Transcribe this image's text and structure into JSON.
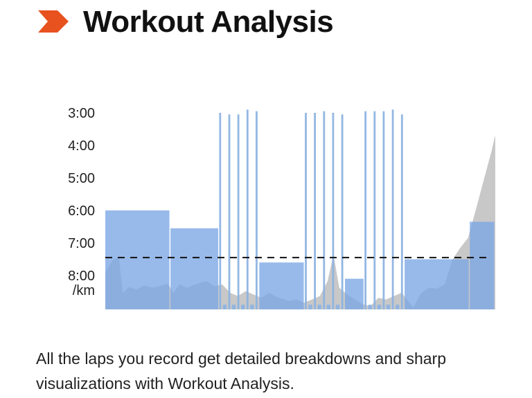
{
  "header": {
    "title": "Workout Analysis",
    "logo_icon": "orange-chevron-logo-icon",
    "accent_color": "#E8521F"
  },
  "caption": {
    "text": "All the laps you record get detailed breakdowns and sharp visualizations with Workout Analysis."
  },
  "chart_data": {
    "type": "bar",
    "yaxis": {
      "ticks": [
        "3:00",
        "4:00",
        "5:00",
        "6:00",
        "7:00",
        "8:00"
      ],
      "unit": "/km",
      "inverted": true,
      "range_min_per_km": [
        3,
        9
      ]
    },
    "reference_line": {
      "pace_min_per_km": 7.45,
      "style": "dashed"
    },
    "colors": {
      "lap": "#7BA6E6",
      "interval": "#8DB3E2",
      "elevation": "#C8C8C8"
    },
    "laps": [
      {
        "pace_min_per_km": 6.0,
        "distance_fraction": 0.143
      },
      {
        "pace_min_per_km": 6.55,
        "distance_fraction": 0.107
      },
      {
        "pace_min_per_km": 3.0,
        "distance_fraction": 0.008
      },
      {
        "pace_min_per_km": 8.9,
        "distance_fraction": 0.012
      },
      {
        "pace_min_per_km": 3.05,
        "distance_fraction": 0.008
      },
      {
        "pace_min_per_km": 8.9,
        "distance_fraction": 0.012
      },
      {
        "pace_min_per_km": 3.05,
        "distance_fraction": 0.008
      },
      {
        "pace_min_per_km": 8.9,
        "distance_fraction": 0.012
      },
      {
        "pace_min_per_km": 2.9,
        "distance_fraction": 0.008
      },
      {
        "pace_min_per_km": 8.9,
        "distance_fraction": 0.012
      },
      {
        "pace_min_per_km": 2.95,
        "distance_fraction": 0.008
      },
      {
        "pace_min_per_km": 7.6,
        "distance_fraction": 0.1
      },
      {
        "pace_min_per_km": 3.0,
        "distance_fraction": 0.008
      },
      {
        "pace_min_per_km": 8.9,
        "distance_fraction": 0.012
      },
      {
        "pace_min_per_km": 3.0,
        "distance_fraction": 0.008
      },
      {
        "pace_min_per_km": 8.9,
        "distance_fraction": 0.012
      },
      {
        "pace_min_per_km": 2.95,
        "distance_fraction": 0.008
      },
      {
        "pace_min_per_km": 8.9,
        "distance_fraction": 0.012
      },
      {
        "pace_min_per_km": 3.0,
        "distance_fraction": 0.008
      },
      {
        "pace_min_per_km": 8.9,
        "distance_fraction": 0.012
      },
      {
        "pace_min_per_km": 3.05,
        "distance_fraction": 0.008
      },
      {
        "pace_min_per_km": 8.1,
        "distance_fraction": 0.043
      },
      {
        "pace_min_per_km": 2.95,
        "distance_fraction": 0.008
      },
      {
        "pace_min_per_km": 8.9,
        "distance_fraction": 0.012
      },
      {
        "pace_min_per_km": 2.95,
        "distance_fraction": 0.008
      },
      {
        "pace_min_per_km": 8.9,
        "distance_fraction": 0.012
      },
      {
        "pace_min_per_km": 2.95,
        "distance_fraction": 0.008
      },
      {
        "pace_min_per_km": 8.9,
        "distance_fraction": 0.012
      },
      {
        "pace_min_per_km": 2.9,
        "distance_fraction": 0.008
      },
      {
        "pace_min_per_km": 8.9,
        "distance_fraction": 0.012
      },
      {
        "pace_min_per_km": 3.05,
        "distance_fraction": 0.008
      },
      {
        "pace_min_per_km": 7.5,
        "distance_fraction": 0.143
      },
      {
        "pace_min_per_km": 6.35,
        "distance_fraction": 0.056
      }
    ],
    "elevation_profile": [
      [
        0.0,
        0.45
      ],
      [
        0.02,
        0.6
      ],
      [
        0.035,
        0.62
      ],
      [
        0.045,
        0.2
      ],
      [
        0.06,
        0.27
      ],
      [
        0.08,
        0.24
      ],
      [
        0.1,
        0.29
      ],
      [
        0.12,
        0.26
      ],
      [
        0.14,
        0.28
      ],
      [
        0.16,
        0.31
      ],
      [
        0.175,
        0.2
      ],
      [
        0.19,
        0.3
      ],
      [
        0.21,
        0.26
      ],
      [
        0.23,
        0.3
      ],
      [
        0.25,
        0.33
      ],
      [
        0.26,
        0.34
      ],
      [
        0.28,
        0.28
      ],
      [
        0.3,
        0.3
      ],
      [
        0.32,
        0.2
      ],
      [
        0.34,
        0.16
      ],
      [
        0.36,
        0.22
      ],
      [
        0.38,
        0.18
      ],
      [
        0.4,
        0.14
      ],
      [
        0.42,
        0.2
      ],
      [
        0.44,
        0.15
      ],
      [
        0.46,
        0.12
      ],
      [
        0.47,
        0.1
      ],
      [
        0.49,
        0.12
      ],
      [
        0.51,
        0.08
      ],
      [
        0.53,
        0.12
      ],
      [
        0.55,
        0.16
      ],
      [
        0.57,
        0.34
      ],
      [
        0.585,
        0.66
      ],
      [
        0.6,
        0.26
      ],
      [
        0.62,
        0.18
      ],
      [
        0.64,
        0.12
      ],
      [
        0.66,
        0.06
      ],
      [
        0.68,
        0.04
      ],
      [
        0.7,
        0.14
      ],
      [
        0.72,
        0.12
      ],
      [
        0.74,
        0.16
      ],
      [
        0.76,
        0.2
      ],
      [
        0.78,
        0.08
      ],
      [
        0.79,
        0.02
      ],
      [
        0.81,
        0.2
      ],
      [
        0.83,
        0.26
      ],
      [
        0.85,
        0.25
      ],
      [
        0.87,
        0.3
      ],
      [
        0.89,
        0.6
      ],
      [
        0.91,
        0.74
      ],
      [
        0.93,
        0.86
      ],
      [
        0.95,
        1.2
      ],
      [
        0.97,
        1.55
      ],
      [
        0.99,
        1.9
      ],
      [
        1.0,
        2.1
      ]
    ]
  }
}
